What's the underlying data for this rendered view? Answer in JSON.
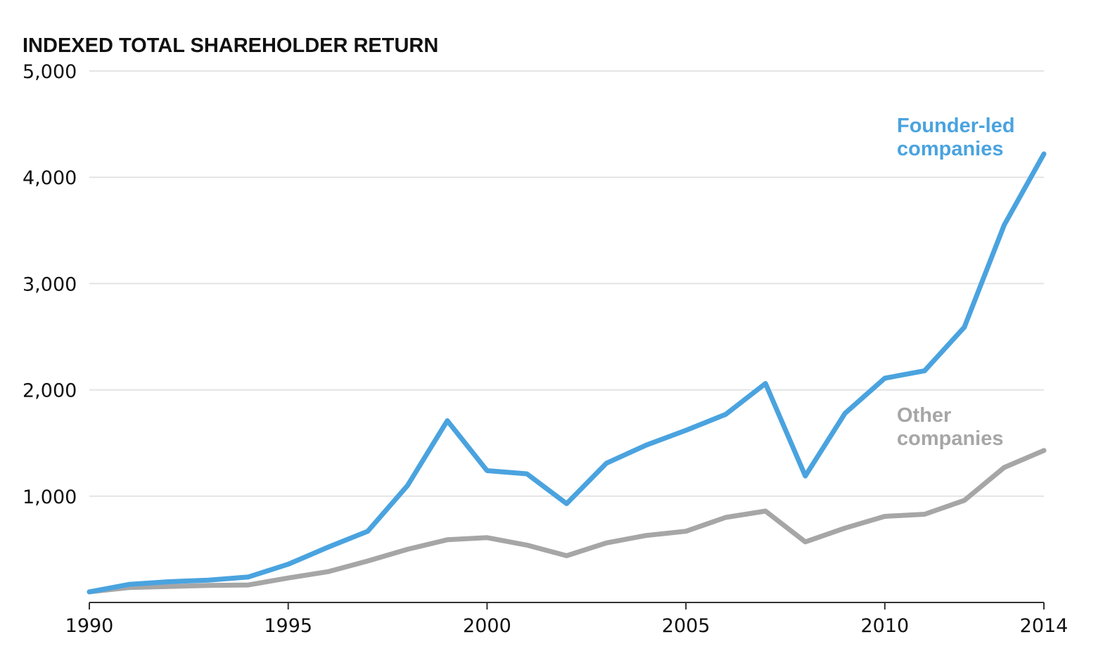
{
  "chart_data": {
    "type": "line",
    "title": "INDEXED TOTAL SHAREHOLDER RETURN",
    "xlabel": "",
    "ylabel": "",
    "xlim": [
      1990,
      2014
    ],
    "ylim": [
      0,
      5000
    ],
    "grid": true,
    "x_tick_labels": [
      "1990",
      "1995",
      "2000",
      "2005",
      "2010",
      "2014"
    ],
    "y_tick_labels": [
      "1,000",
      "2,000",
      "3,000",
      "4,000",
      "5,000"
    ],
    "x": [
      1990,
      1991,
      1992,
      1993,
      1994,
      1995,
      1996,
      1997,
      1998,
      1999,
      2000,
      2001,
      2002,
      2003,
      2004,
      2005,
      2006,
      2007,
      2008,
      2009,
      2010,
      2011,
      2012,
      2013,
      2014
    ],
    "series": [
      {
        "name": "Founder-led companies",
        "color": "#4aa3df",
        "values": [
          100,
          170,
          195,
          210,
          240,
          360,
          520,
          670,
          1100,
          1710,
          1240,
          1210,
          930,
          1310,
          1480,
          1620,
          1770,
          2060,
          1190,
          1780,
          2110,
          2180,
          2590,
          3550,
          4220
        ]
      },
      {
        "name": "Other companies",
        "color": "#a6a6a6",
        "values": [
          100,
          140,
          150,
          160,
          165,
          230,
          290,
          390,
          500,
          590,
          610,
          540,
          440,
          560,
          630,
          670,
          800,
          860,
          570,
          700,
          810,
          830,
          960,
          1270,
          1430
        ]
      }
    ]
  }
}
